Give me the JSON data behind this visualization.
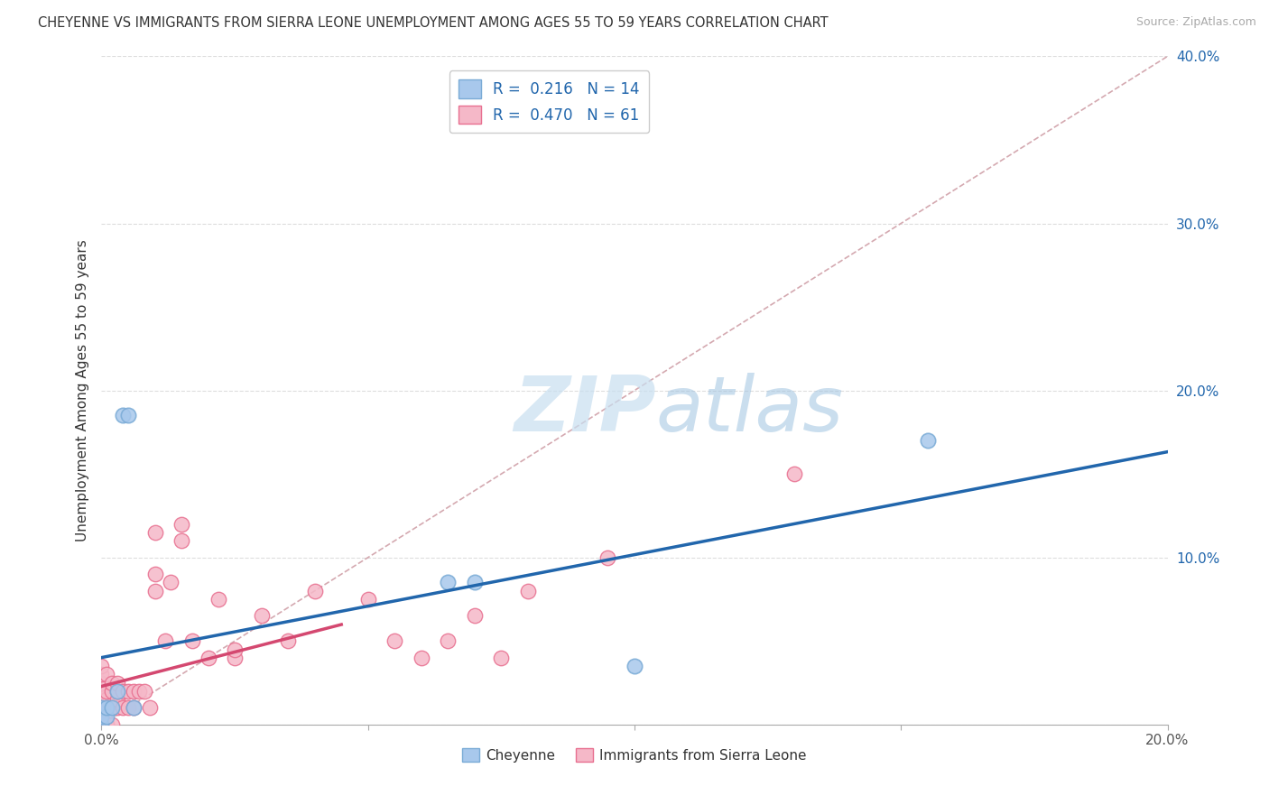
{
  "title": "CHEYENNE VS IMMIGRANTS FROM SIERRA LEONE UNEMPLOYMENT AMONG AGES 55 TO 59 YEARS CORRELATION CHART",
  "source": "Source: ZipAtlas.com",
  "ylabel": "Unemployment Among Ages 55 to 59 years",
  "legend_cheyenne": "Cheyenne",
  "legend_sierra": "Immigrants from Sierra Leone",
  "R_cheyenne": 0.216,
  "N_cheyenne": 14,
  "R_sierra": 0.47,
  "N_sierra": 61,
  "xlim": [
    0.0,
    0.2
  ],
  "ylim": [
    0.0,
    0.4
  ],
  "xticks": [
    0.0,
    0.05,
    0.1,
    0.15,
    0.2
  ],
  "yticks": [
    0.0,
    0.1,
    0.2,
    0.3,
    0.4
  ],
  "xtick_labels": [
    "0.0%",
    "",
    "",
    "",
    "20.0%"
  ],
  "ytick_labels": [
    "",
    "10.0%",
    "20.0%",
    "30.0%",
    "40.0%"
  ],
  "color_cheyenne_fill": "#A8C8EC",
  "color_cheyenne_edge": "#7aabd6",
  "color_sierra_fill": "#F5B8C8",
  "color_sierra_edge": "#E87090",
  "color_line_cheyenne": "#2166AC",
  "color_line_sierra": "#D44870",
  "color_diag": "#D0A0A8",
  "watermark_zip": "ZIP",
  "watermark_atlas": "atlas",
  "cheyenne_x": [
    0.0,
    0.0,
    0.0,
    0.001,
    0.001,
    0.002,
    0.003,
    0.004,
    0.005,
    0.006,
    0.065,
    0.07,
    0.1,
    0.155
  ],
  "cheyenne_y": [
    0.0,
    0.005,
    0.01,
    0.005,
    0.01,
    0.01,
    0.02,
    0.185,
    0.185,
    0.01,
    0.085,
    0.085,
    0.035,
    0.17
  ],
  "sierra_x": [
    0.0,
    0.0,
    0.0,
    0.0,
    0.0,
    0.0,
    0.0,
    0.0,
    0.0,
    0.0,
    0.0,
    0.0,
    0.0,
    0.0,
    0.001,
    0.001,
    0.001,
    0.001,
    0.001,
    0.001,
    0.002,
    0.002,
    0.002,
    0.002,
    0.003,
    0.003,
    0.003,
    0.003,
    0.004,
    0.004,
    0.005,
    0.005,
    0.006,
    0.006,
    0.007,
    0.008,
    0.009,
    0.01,
    0.01,
    0.01,
    0.012,
    0.013,
    0.015,
    0.015,
    0.017,
    0.02,
    0.022,
    0.025,
    0.025,
    0.03,
    0.035,
    0.04,
    0.05,
    0.055,
    0.06,
    0.065,
    0.07,
    0.075,
    0.08,
    0.095,
    0.13
  ],
  "sierra_y": [
    0.0,
    0.0,
    0.0,
    0.0,
    0.005,
    0.005,
    0.01,
    0.01,
    0.015,
    0.02,
    0.025,
    0.025,
    0.03,
    0.035,
    0.0,
    0.0,
    0.01,
    0.015,
    0.02,
    0.03,
    0.0,
    0.01,
    0.02,
    0.025,
    0.01,
    0.015,
    0.02,
    0.025,
    0.01,
    0.02,
    0.01,
    0.02,
    0.01,
    0.02,
    0.02,
    0.02,
    0.01,
    0.08,
    0.09,
    0.115,
    0.05,
    0.085,
    0.11,
    0.12,
    0.05,
    0.04,
    0.075,
    0.04,
    0.045,
    0.065,
    0.05,
    0.08,
    0.075,
    0.05,
    0.04,
    0.05,
    0.065,
    0.04,
    0.08,
    0.1,
    0.15
  ]
}
